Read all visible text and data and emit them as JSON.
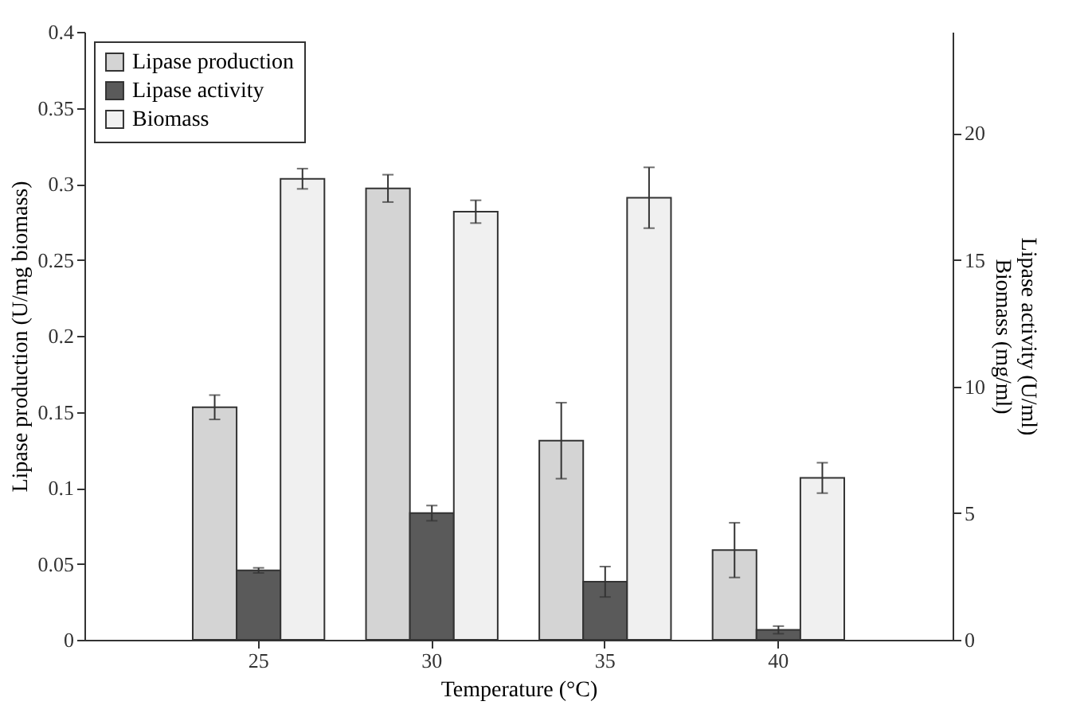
{
  "chart_data": {
    "type": "bar",
    "xlabel": "Temperature (°C)",
    "ylabel": "Lipase production (U/mg biomass)",
    "y2label": "Lipase activity (U/ml)\nBiomass (mg/ml)",
    "categories": [
      "25",
      "30",
      "35",
      "40"
    ],
    "series": [
      {
        "name": "Lipase production",
        "color": "#d4d4d4",
        "values": [
          0.153,
          0.297,
          0.131,
          0.059
        ],
        "errors": [
          0.008,
          0.009,
          0.025,
          0.018
        ]
      },
      {
        "name": "Lipase activity",
        "color": "#5a5a5a",
        "axis": "y2",
        "values": [
          2.74,
          5.0,
          2.29,
          0.39
        ],
        "errors": [
          0.1,
          0.3,
          0.6,
          0.15
        ]
      },
      {
        "name": "Biomass",
        "color": "#f0f0f0",
        "axis": "y2",
        "values": [
          18.2,
          16.9,
          17.45,
          6.39
        ],
        "errors": [
          0.4,
          0.45,
          1.2,
          0.6
        ]
      }
    ],
    "ylim": [
      0,
      0.4
    ],
    "yticks": [
      0,
      0.05,
      0.1,
      0.15,
      0.2,
      0.25,
      0.3,
      0.35,
      0.4
    ],
    "y2lim": [
      0,
      24
    ],
    "y2ticks": [
      0,
      5,
      10,
      15,
      20
    ],
    "grid": false,
    "legend": "top left"
  }
}
